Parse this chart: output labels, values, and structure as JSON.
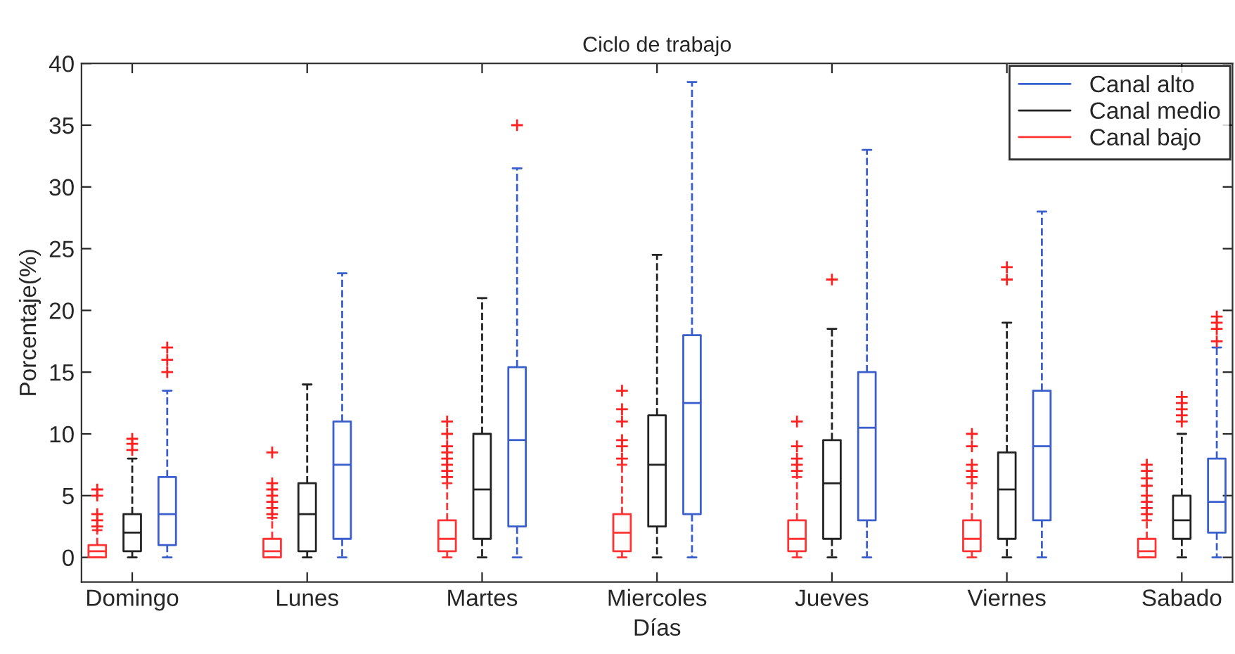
{
  "chart_data": {
    "type": "box",
    "title": "Ciclo de trabajo",
    "xlabel": "Días",
    "ylabel": "Porcentaje(%)",
    "categories": [
      "Domingo",
      "Lunes",
      "Martes",
      "Miercoles",
      "Jueves",
      "Viernes",
      "Sabado"
    ],
    "ylim": [
      -2,
      40
    ],
    "yticks": [
      0,
      5,
      10,
      15,
      20,
      25,
      30,
      35,
      40
    ],
    "grid": false,
    "legend": "top right",
    "marker": "cross",
    "line_style": "dashed",
    "series": [
      {
        "name": "Canal bajo",
        "color": "#ff3333",
        "boxes": [
          {
            "low": 0,
            "q1": 0,
            "median": 0.5,
            "q3": 1.0,
            "high": 2.2,
            "outliers": [
              2.5,
              3,
              3.5,
              5,
              5.5
            ]
          },
          {
            "low": 0,
            "q1": 0,
            "median": 0.5,
            "q3": 1.5,
            "high": 3.2,
            "outliers": [
              3.5,
              4,
              4.5,
              5,
              5.5,
              6,
              8.5
            ]
          },
          {
            "low": 0,
            "q1": 0.5,
            "median": 1.5,
            "q3": 3,
            "high": 6,
            "outliers": [
              6.5,
              7,
              7.5,
              8,
              8.5,
              9,
              10,
              11
            ]
          },
          {
            "low": 0,
            "q1": 0.5,
            "median": 2,
            "q3": 3.5,
            "high": 7.5,
            "outliers": [
              8,
              9,
              9.5,
              11,
              12,
              13.5
            ]
          },
          {
            "low": 0,
            "q1": 0.5,
            "median": 1.5,
            "q3": 3,
            "high": 6.5,
            "outliers": [
              7,
              7.5,
              8,
              9,
              11
            ]
          },
          {
            "low": 0,
            "q1": 0.5,
            "median": 1.5,
            "q3": 3,
            "high": 6,
            "outliers": [
              6.5,
              7,
              7.5,
              9,
              10
            ]
          },
          {
            "low": 0,
            "q1": 0,
            "median": 0.5,
            "q3": 1.5,
            "high": 3,
            "outliers": [
              3.5,
              4,
              4.5,
              5,
              5.8,
              6.4,
              7,
              7.5
            ]
          }
        ]
      },
      {
        "name": "Canal medio",
        "color": "#222222",
        "boxes": [
          {
            "low": 0,
            "q1": 0.5,
            "median": 2,
            "q3": 3.5,
            "high": 8,
            "outliers": [
              8.7,
              9.2,
              9.6
            ]
          },
          {
            "low": 0,
            "q1": 0.5,
            "median": 3.5,
            "q3": 6,
            "high": 14
          },
          {
            "low": 0,
            "q1": 1.5,
            "median": 5.5,
            "q3": 10,
            "high": 21
          },
          {
            "low": 0,
            "q1": 2.5,
            "median": 7.5,
            "q3": 11.5,
            "high": 24.5
          },
          {
            "low": 0,
            "q1": 1.5,
            "median": 6,
            "q3": 9.5,
            "high": 18.5,
            "outliers": [
              22.5
            ]
          },
          {
            "low": 0,
            "q1": 1.5,
            "median": 5.5,
            "q3": 8.5,
            "high": 19,
            "outliers": [
              22.5,
              23.5
            ]
          },
          {
            "low": 0,
            "q1": 1.5,
            "median": 3,
            "q3": 5,
            "high": 10,
            "outliers": [
              11,
              11.5,
              12,
              12.5,
              13
            ]
          }
        ]
      },
      {
        "name": "Canal alto",
        "color": "#3a5fcd",
        "boxes": [
          {
            "low": 0,
            "q1": 1,
            "median": 3.5,
            "q3": 6.5,
            "high": 13.5,
            "outliers": [
              15,
              16,
              17
            ]
          },
          {
            "low": 0,
            "q1": 1.5,
            "median": 7.5,
            "q3": 11,
            "high": 23
          },
          {
            "low": 0,
            "q1": 2.5,
            "median": 9.5,
            "q3": 15.4,
            "high": 31.5,
            "outliers": [
              35
            ]
          },
          {
            "low": 0,
            "q1": 3.5,
            "median": 12.5,
            "q3": 18,
            "high": 38.5
          },
          {
            "low": 0,
            "q1": 3,
            "median": 10.5,
            "q3": 15,
            "high": 33
          },
          {
            "low": 0,
            "q1": 3,
            "median": 9,
            "q3": 13.5,
            "high": 28
          },
          {
            "low": 0,
            "q1": 2,
            "median": 4.5,
            "q3": 8,
            "high": 17,
            "outliers": [
              17.5,
              18.5,
              19,
              19.5
            ]
          }
        ]
      }
    ]
  }
}
